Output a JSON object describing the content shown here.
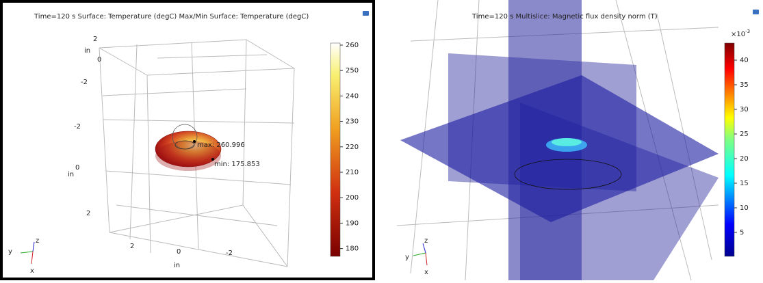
{
  "panels": [
    {
      "title": "Time=120 s   Surface: Temperature (degC)  Max/Min Surface: Temperature (degC)",
      "colorbar_ticks": [
        "260",
        "250",
        "240",
        "230",
        "220",
        "210",
        "200",
        "190",
        "180"
      ],
      "annotations": [
        "max: 260.996",
        "min: 175.853"
      ],
      "axis_labels": [
        "in",
        "2",
        "0",
        "-2",
        "-2",
        "0",
        "in",
        "2",
        "2",
        "0",
        "-2",
        "in"
      ],
      "triad": [
        "y",
        "z",
        "x"
      ]
    },
    {
      "title": "Time=120 s   Multislice: Magnetic flux density norm (T)",
      "multiplier": "×10",
      "exponent": "-3",
      "colorbar_ticks": [
        "40",
        "35",
        "30",
        "25",
        "20",
        "15",
        "10",
        "5"
      ],
      "triad": [
        "y",
        "z",
        "x"
      ]
    }
  ]
}
